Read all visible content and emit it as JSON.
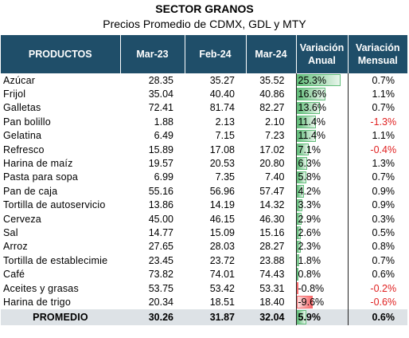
{
  "title": "SECTOR GRANOS",
  "subtitle": "Precios Promedio de CDMX, GDL y MTY",
  "headers": {
    "productos": "PRODUCTOS",
    "mar23": "Mar-23",
    "feb24": "Feb-24",
    "mar24": "Mar-24",
    "var_anual_l1": "Variación",
    "var_anual_l2": "Anual",
    "var_mensual_l1": "Variación",
    "var_mensual_l2": "Mensual"
  },
  "colors": {
    "header_bg": "#1f4e69",
    "positive_bar": "#63be7b",
    "negative_bar": "#f8696b",
    "negative_text": "#e02020",
    "total_bg": "#dde2e6"
  },
  "rows": [
    {
      "producto": "Azúcar",
      "mar23": "28.35",
      "feb24": "35.27",
      "mar24": "35.52",
      "anual": "25.3%",
      "anual_value": 25.3,
      "mensual": "0.7%",
      "mensual_value": 0.7
    },
    {
      "producto": "Frijol",
      "mar23": "35.04",
      "feb24": "40.40",
      "mar24": "40.86",
      "anual": "16.6%",
      "anual_value": 16.6,
      "mensual": "1.1%",
      "mensual_value": 1.1
    },
    {
      "producto": "Galletas",
      "mar23": "72.41",
      "feb24": "81.74",
      "mar24": "82.27",
      "anual": "13.6%",
      "anual_value": 13.6,
      "mensual": "0.7%",
      "mensual_value": 0.7
    },
    {
      "producto": "Pan bolillo",
      "mar23": "1.88",
      "feb24": "2.13",
      "mar24": "2.10",
      "anual": "11.4%",
      "anual_value": 11.4,
      "mensual": "-1.3%",
      "mensual_value": -1.3
    },
    {
      "producto": "Gelatina",
      "mar23": "6.49",
      "feb24": "7.15",
      "mar24": "7.23",
      "anual": "11.4%",
      "anual_value": 11.4,
      "mensual": "1.1%",
      "mensual_value": 1.1
    },
    {
      "producto": "Refresco",
      "mar23": "15.89",
      "feb24": "17.08",
      "mar24": "17.02",
      "anual": "7.1%",
      "anual_value": 7.1,
      "mensual": "-0.4%",
      "mensual_value": -0.4
    },
    {
      "producto": "Harina de maíz",
      "mar23": "19.57",
      "feb24": "20.53",
      "mar24": "20.80",
      "anual": "6.3%",
      "anual_value": 6.3,
      "mensual": "1.3%",
      "mensual_value": 1.3
    },
    {
      "producto": "Pasta para sopa",
      "mar23": "6.99",
      "feb24": "7.35",
      "mar24": "7.40",
      "anual": "5.8%",
      "anual_value": 5.8,
      "mensual": "0.7%",
      "mensual_value": 0.7
    },
    {
      "producto": "Pan de caja",
      "mar23": "55.16",
      "feb24": "56.96",
      "mar24": "57.47",
      "anual": "4.2%",
      "anual_value": 4.2,
      "mensual": "0.9%",
      "mensual_value": 0.9
    },
    {
      "producto": "Tortilla de autoservicio",
      "mar23": "13.86",
      "feb24": "14.19",
      "mar24": "14.32",
      "anual": "3.3%",
      "anual_value": 3.3,
      "mensual": "0.9%",
      "mensual_value": 0.9
    },
    {
      "producto": "Cerveza",
      "mar23": "45.00",
      "feb24": "46.15",
      "mar24": "46.30",
      "anual": "2.9%",
      "anual_value": 2.9,
      "mensual": "0.3%",
      "mensual_value": 0.3
    },
    {
      "producto": "Sal",
      "mar23": "14.77",
      "feb24": "15.09",
      "mar24": "15.16",
      "anual": "2.6%",
      "anual_value": 2.6,
      "mensual": "0.5%",
      "mensual_value": 0.5
    },
    {
      "producto": "Arroz",
      "mar23": "27.65",
      "feb24": "28.03",
      "mar24": "28.27",
      "anual": "2.3%",
      "anual_value": 2.3,
      "mensual": "0.8%",
      "mensual_value": 0.8
    },
    {
      "producto": "Tortilla de establecimie",
      "mar23": "23.45",
      "feb24": "23.72",
      "mar24": "23.88",
      "anual": "1.8%",
      "anual_value": 1.8,
      "mensual": "0.7%",
      "mensual_value": 0.7
    },
    {
      "producto": "Café",
      "mar23": "73.82",
      "feb24": "74.01",
      "mar24": "74.43",
      "anual": "0.8%",
      "anual_value": 0.8,
      "mensual": "0.6%",
      "mensual_value": 0.6
    },
    {
      "producto": "Aceites y grasas",
      "mar23": "53.75",
      "feb24": "53.42",
      "mar24": "53.31",
      "anual": "-0.8%",
      "anual_value": -0.8,
      "mensual": "-0.2%",
      "mensual_value": -0.2
    },
    {
      "producto": "Harina de trigo",
      "mar23": "20.34",
      "feb24": "18.51",
      "mar24": "18.40",
      "anual": "-9.6%",
      "anual_value": -9.6,
      "mensual": "-0.6%",
      "mensual_value": -0.6
    }
  ],
  "total": {
    "producto": "PROMEDIO",
    "mar23": "30.26",
    "feb24": "31.87",
    "mar24": "32.04",
    "anual": "5.9%",
    "anual_value": 5.9,
    "mensual": "0.6%",
    "mensual_value": 0.6
  }
}
